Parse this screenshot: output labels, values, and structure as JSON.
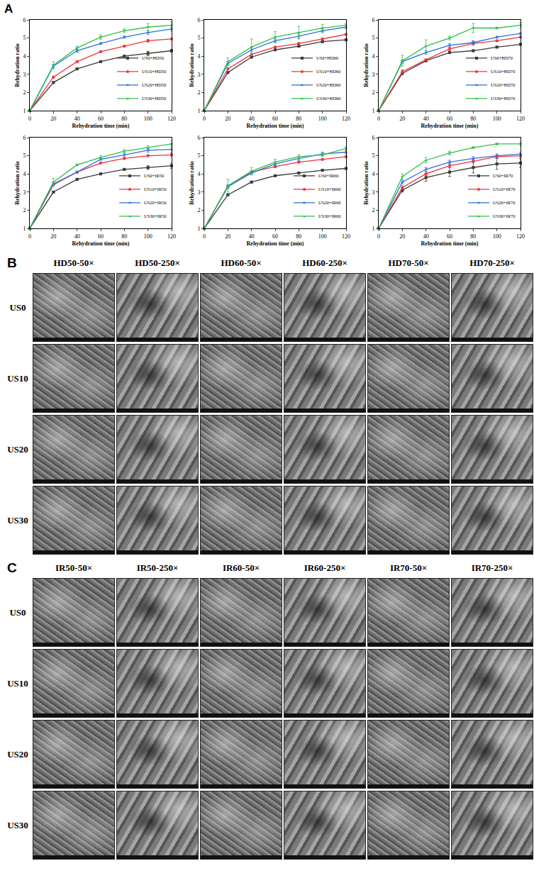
{
  "panel_a_label": "A",
  "chart_data": [
    {
      "type": "line",
      "xlabel": "Rehydration time (min)",
      "ylabel": "Rehydration ratio",
      "x": [
        0,
        20,
        40,
        60,
        80,
        100,
        120
      ],
      "xlim": [
        0,
        120
      ],
      "xticks": [
        0,
        20,
        40,
        60,
        80,
        100,
        120
      ],
      "ylim": [
        1,
        6
      ],
      "yticks": [
        1,
        2,
        3,
        4,
        5,
        6
      ],
      "legend": "lower right",
      "grid": false,
      "series": [
        {
          "name": "US0+HD50",
          "color": "#3a3a3a",
          "marker": "square",
          "line_style": "solid",
          "values": [
            1,
            2.55,
            3.3,
            3.7,
            4.0,
            4.15,
            4.3
          ],
          "errors": [
            0,
            0.05,
            0.05,
            0.05,
            0.06,
            0.12,
            0.08
          ]
        },
        {
          "name": "US10+HD50",
          "color": "#f0343a",
          "marker": "circle",
          "line_style": "solid",
          "values": [
            1,
            2.85,
            3.7,
            4.25,
            4.55,
            4.85,
            4.95
          ],
          "errors": [
            0,
            0.05,
            0.05,
            0.05,
            0.05,
            0.08,
            0.05
          ]
        },
        {
          "name": "US20+HD50",
          "color": "#2f6fe0",
          "marker": "triangle-up",
          "line_style": "solid",
          "values": [
            1,
            3.45,
            4.3,
            4.7,
            5.05,
            5.3,
            5.5
          ],
          "errors": [
            0,
            0.1,
            0.08,
            0.05,
            0.06,
            0.1,
            0.1
          ]
        },
        {
          "name": "US30+HD50",
          "color": "#2ec24a",
          "marker": "triangle-down",
          "line_style": "solid",
          "values": [
            1,
            3.5,
            4.45,
            5.05,
            5.4,
            5.6,
            5.7
          ],
          "errors": [
            0,
            0.2,
            0.1,
            0.12,
            0.1,
            0.2,
            0.2
          ]
        }
      ]
    },
    {
      "type": "line",
      "xlabel": "Rehydration time (min)",
      "ylabel": "Rehydration ratio",
      "x": [
        0,
        20,
        40,
        60,
        80,
        100,
        120
      ],
      "xlim": [
        0,
        120
      ],
      "xticks": [
        0,
        20,
        40,
        60,
        80,
        100,
        120
      ],
      "ylim": [
        1,
        6
      ],
      "yticks": [
        1,
        2,
        3,
        4,
        5,
        6
      ],
      "legend": "lower right",
      "grid": false,
      "series": [
        {
          "name": "US0+HD60",
          "color": "#3a3a3a",
          "marker": "square",
          "line_style": "solid",
          "values": [
            1,
            3.1,
            3.95,
            4.35,
            4.55,
            4.8,
            4.9
          ],
          "errors": [
            0,
            0.05,
            0.05,
            0.05,
            0.05,
            0.05,
            0.05
          ]
        },
        {
          "name": "US10+HD60",
          "color": "#f0343a",
          "marker": "circle",
          "line_style": "solid",
          "values": [
            1,
            3.3,
            4.1,
            4.5,
            4.7,
            4.95,
            5.2
          ],
          "errors": [
            0,
            0.05,
            0.05,
            0.05,
            0.05,
            0.05,
            0.05
          ]
        },
        {
          "name": "US20+HD60",
          "color": "#2f6fe0",
          "marker": "triangle-up",
          "line_style": "solid",
          "values": [
            1,
            3.6,
            4.35,
            4.85,
            5.1,
            5.4,
            5.6
          ],
          "errors": [
            0,
            0.1,
            0.1,
            0.1,
            0.12,
            0.1,
            0.1
          ]
        },
        {
          "name": "US30+HD60",
          "color": "#2ec24a",
          "marker": "triangle-down",
          "line_style": "solid",
          "values": [
            1,
            3.7,
            4.5,
            5.05,
            5.3,
            5.55,
            5.7
          ],
          "errors": [
            0,
            0.2,
            0.45,
            0.3,
            0.35,
            0.2,
            0.1
          ]
        }
      ]
    },
    {
      "type": "line",
      "xlabel": "Rehydration time (min)",
      "ylabel": "Rehydration ratio",
      "x": [
        0,
        20,
        40,
        60,
        80,
        100,
        120
      ],
      "xlim": [
        0,
        120
      ],
      "xticks": [
        0,
        20,
        40,
        60,
        80,
        100,
        120
      ],
      "ylim": [
        1,
        6
      ],
      "yticks": [
        1,
        2,
        3,
        4,
        5,
        6
      ],
      "legend": "lower right",
      "grid": false,
      "series": [
        {
          "name": "US0+HD70",
          "color": "#3a3a3a",
          "marker": "square",
          "line_style": "solid",
          "values": [
            1,
            3.05,
            3.75,
            4.2,
            4.3,
            4.5,
            4.65
          ],
          "errors": [
            0,
            0.05,
            0.05,
            0.05,
            0.05,
            0.05,
            0.05
          ]
        },
        {
          "name": "US10+HD70",
          "color": "#f0343a",
          "marker": "circle",
          "line_style": "solid",
          "values": [
            1,
            3.15,
            3.8,
            4.4,
            4.7,
            4.85,
            5.05
          ],
          "errors": [
            0,
            0.1,
            0.05,
            0.1,
            0.1,
            0.05,
            0.05
          ]
        },
        {
          "name": "US20+HD70",
          "color": "#2f6fe0",
          "marker": "triangle-up",
          "line_style": "solid",
          "values": [
            1,
            3.7,
            4.2,
            4.6,
            4.75,
            5.05,
            5.25
          ],
          "errors": [
            0,
            0.1,
            0.1,
            0.1,
            0.1,
            0.05,
            0.05
          ]
        },
        {
          "name": "US30+HD70",
          "color": "#2ec24a",
          "marker": "triangle-down",
          "line_style": "solid",
          "values": [
            1,
            3.75,
            4.55,
            5.0,
            5.55,
            5.55,
            5.7
          ],
          "errors": [
            0,
            0.3,
            0.35,
            0.1,
            0.25,
            0.05,
            0.15
          ]
        }
      ]
    },
    {
      "type": "line",
      "xlabel": "Rehydration time (min)",
      "ylabel": "Rehydration ratio",
      "x": [
        0,
        20,
        40,
        60,
        80,
        100,
        120
      ],
      "xlim": [
        0,
        120
      ],
      "xticks": [
        0,
        20,
        40,
        60,
        80,
        100,
        120
      ],
      "ylim": [
        1,
        6
      ],
      "yticks": [
        1,
        2,
        3,
        4,
        5,
        6
      ],
      "legend": "lower right",
      "grid": false,
      "series": [
        {
          "name": "US0+IR50",
          "color": "#3a3a3a",
          "marker": "square",
          "line_style": "solid",
          "values": [
            1,
            3.0,
            3.7,
            4.0,
            4.25,
            4.35,
            4.45
          ],
          "errors": [
            0,
            0.05,
            0.05,
            0.05,
            0.05,
            0.1,
            0.15
          ]
        },
        {
          "name": "US10+IR50",
          "color": "#f0343a",
          "marker": "circle",
          "line_style": "solid",
          "values": [
            1,
            3.4,
            4.1,
            4.6,
            4.85,
            5.0,
            5.05
          ],
          "errors": [
            0,
            0.05,
            0.05,
            0.05,
            0.05,
            0.05,
            0.1
          ]
        },
        {
          "name": "US20+IR50",
          "color": "#2f6fe0",
          "marker": "triangle-up",
          "line_style": "solid",
          "values": [
            1,
            3.45,
            4.1,
            4.8,
            5.05,
            5.3,
            5.35
          ],
          "errors": [
            0,
            0.1,
            0.05,
            0.05,
            0.1,
            0.1,
            0.25
          ]
        },
        {
          "name": "US30+IR50",
          "color": "#2ec24a",
          "marker": "triangle-down",
          "line_style": "solid",
          "values": [
            1,
            3.55,
            4.5,
            4.9,
            5.25,
            5.45,
            5.65
          ],
          "errors": [
            0,
            0.2,
            0.05,
            0.1,
            0.1,
            0.1,
            0.2
          ]
        }
      ]
    },
    {
      "type": "line",
      "xlabel": "Rehydration time (min)",
      "ylabel": "Rehydration ratio",
      "x": [
        0,
        20,
        40,
        60,
        80,
        100,
        120
      ],
      "xlim": [
        0,
        120
      ],
      "xticks": [
        0,
        20,
        40,
        60,
        80,
        100,
        120
      ],
      "ylim": [
        1,
        6
      ],
      "yticks": [
        1,
        2,
        3,
        4,
        5,
        6
      ],
      "legend": "lower right",
      "grid": false,
      "series": [
        {
          "name": "US0+IR60",
          "color": "#3a3a3a",
          "marker": "square",
          "line_style": "solid",
          "values": [
            1,
            2.85,
            3.55,
            3.9,
            4.05,
            4.2,
            4.3
          ],
          "errors": [
            0,
            0.05,
            0.05,
            0.05,
            0.05,
            0.05,
            0.05
          ]
        },
        {
          "name": "US10+IR60",
          "color": "#f0343a",
          "marker": "circle",
          "line_style": "solid",
          "values": [
            1,
            3.3,
            4.1,
            4.4,
            4.65,
            4.8,
            4.95
          ],
          "errors": [
            0,
            0.05,
            0.05,
            0.05,
            0.05,
            0.05,
            0.05
          ]
        },
        {
          "name": "US20+IR60",
          "color": "#2f6fe0",
          "marker": "triangle-up",
          "line_style": "solid",
          "values": [
            1,
            3.3,
            4.05,
            4.55,
            4.85,
            5.1,
            5.2
          ],
          "errors": [
            0,
            0.1,
            0.1,
            0.1,
            0.1,
            0.1,
            0.1
          ]
        },
        {
          "name": "US30+IR60",
          "color": "#2ec24a",
          "marker": "triangle-down",
          "line_style": "solid",
          "values": [
            1,
            3.35,
            4.15,
            4.65,
            4.95,
            5.05,
            5.4
          ],
          "errors": [
            0,
            0.35,
            0.2,
            0.15,
            0.1,
            0.1,
            0.1
          ]
        }
      ]
    },
    {
      "type": "line",
      "xlabel": "Rehydration time (min)",
      "ylabel": "Rehydration ratio",
      "x": [
        0,
        20,
        40,
        60,
        80,
        100,
        120
      ],
      "xlim": [
        0,
        120
      ],
      "xticks": [
        0,
        20,
        40,
        60,
        80,
        100,
        120
      ],
      "ylim": [
        1,
        6
      ],
      "yticks": [
        1,
        2,
        3,
        4,
        5,
        6
      ],
      "legend": "lower right",
      "grid": false,
      "series": [
        {
          "name": "US0+IR70",
          "color": "#3a3a3a",
          "marker": "square",
          "line_style": "solid",
          "values": [
            1,
            3.1,
            3.8,
            4.1,
            4.35,
            4.55,
            4.6
          ],
          "errors": [
            0,
            0.1,
            0.2,
            0.25,
            0.3,
            0.3,
            0.25
          ]
        },
        {
          "name": "US10+IR70",
          "color": "#f0343a",
          "marker": "circle",
          "line_style": "solid",
          "values": [
            1,
            3.25,
            4.0,
            4.45,
            4.7,
            4.95,
            5.0
          ],
          "errors": [
            0,
            0.1,
            0.1,
            0.1,
            0.1,
            0.1,
            0.1
          ]
        },
        {
          "name": "US20+IR70",
          "color": "#2f6fe0",
          "marker": "triangle-up",
          "line_style": "solid",
          "values": [
            1,
            3.55,
            4.25,
            4.65,
            4.85,
            5.0,
            5.1
          ],
          "errors": [
            0,
            0.1,
            0.1,
            0.1,
            0.1,
            0.1,
            0.1
          ]
        },
        {
          "name": "US30+IR70",
          "color": "#2ec24a",
          "marker": "triangle-down",
          "line_style": "solid",
          "values": [
            1,
            3.85,
            4.75,
            5.15,
            5.45,
            5.65,
            5.65
          ],
          "errors": [
            0,
            0.15,
            0.15,
            0.1,
            0.05,
            0.05,
            0.1
          ]
        }
      ]
    }
  ],
  "micrographs": [
    {
      "label": "B",
      "columns": [
        "HD50-50×",
        "HD50-250×",
        "HD60-50×",
        "HD60-250×",
        "HD70-50×",
        "HD70-250×"
      ],
      "rows": [
        "US0",
        "US10",
        "US20",
        "US30"
      ]
    },
    {
      "label": "C",
      "columns": [
        "IR50-50×",
        "IR50-250×",
        "IR60-50×",
        "IR60-250×",
        "IR70-50×",
        "IR70-250×"
      ],
      "rows": [
        "US0",
        "US10",
        "US20",
        "US30"
      ]
    }
  ]
}
